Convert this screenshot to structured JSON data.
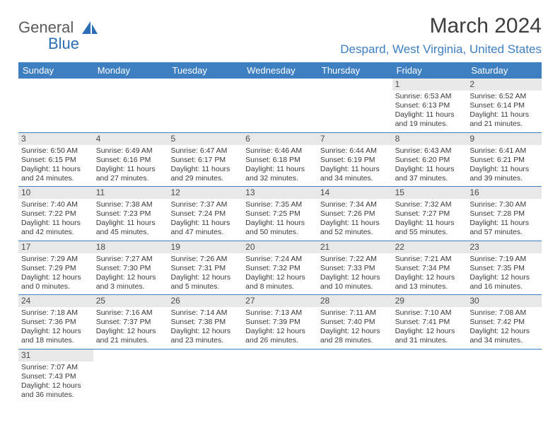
{
  "colors": {
    "header_bg": "#3d7fc1",
    "header_text": "#ffffff",
    "daynum_bg": "#e8e8e8",
    "row_border": "#3d7fc1",
    "title_color": "#3d3d3d",
    "location_color": "#3d7fc1",
    "logo_gray": "#5a5a5a",
    "logo_blue": "#2a6fb5"
  },
  "logo": {
    "gray": "General",
    "blue": "Blue"
  },
  "title": "March 2024",
  "location": "Despard, West Virginia, United States",
  "day_headers": [
    "Sunday",
    "Monday",
    "Tuesday",
    "Wednesday",
    "Thursday",
    "Friday",
    "Saturday"
  ],
  "weeks": [
    [
      null,
      null,
      null,
      null,
      null,
      {
        "n": "1",
        "sunrise": "Sunrise: 6:53 AM",
        "sunset": "Sunset: 6:13 PM",
        "daylight": "Daylight: 11 hours and 19 minutes."
      },
      {
        "n": "2",
        "sunrise": "Sunrise: 6:52 AM",
        "sunset": "Sunset: 6:14 PM",
        "daylight": "Daylight: 11 hours and 21 minutes."
      }
    ],
    [
      {
        "n": "3",
        "sunrise": "Sunrise: 6:50 AM",
        "sunset": "Sunset: 6:15 PM",
        "daylight": "Daylight: 11 hours and 24 minutes."
      },
      {
        "n": "4",
        "sunrise": "Sunrise: 6:49 AM",
        "sunset": "Sunset: 6:16 PM",
        "daylight": "Daylight: 11 hours and 27 minutes."
      },
      {
        "n": "5",
        "sunrise": "Sunrise: 6:47 AM",
        "sunset": "Sunset: 6:17 PM",
        "daylight": "Daylight: 11 hours and 29 minutes."
      },
      {
        "n": "6",
        "sunrise": "Sunrise: 6:46 AM",
        "sunset": "Sunset: 6:18 PM",
        "daylight": "Daylight: 11 hours and 32 minutes."
      },
      {
        "n": "7",
        "sunrise": "Sunrise: 6:44 AM",
        "sunset": "Sunset: 6:19 PM",
        "daylight": "Daylight: 11 hours and 34 minutes."
      },
      {
        "n": "8",
        "sunrise": "Sunrise: 6:43 AM",
        "sunset": "Sunset: 6:20 PM",
        "daylight": "Daylight: 11 hours and 37 minutes."
      },
      {
        "n": "9",
        "sunrise": "Sunrise: 6:41 AM",
        "sunset": "Sunset: 6:21 PM",
        "daylight": "Daylight: 11 hours and 39 minutes."
      }
    ],
    [
      {
        "n": "10",
        "sunrise": "Sunrise: 7:40 AM",
        "sunset": "Sunset: 7:22 PM",
        "daylight": "Daylight: 11 hours and 42 minutes."
      },
      {
        "n": "11",
        "sunrise": "Sunrise: 7:38 AM",
        "sunset": "Sunset: 7:23 PM",
        "daylight": "Daylight: 11 hours and 45 minutes."
      },
      {
        "n": "12",
        "sunrise": "Sunrise: 7:37 AM",
        "sunset": "Sunset: 7:24 PM",
        "daylight": "Daylight: 11 hours and 47 minutes."
      },
      {
        "n": "13",
        "sunrise": "Sunrise: 7:35 AM",
        "sunset": "Sunset: 7:25 PM",
        "daylight": "Daylight: 11 hours and 50 minutes."
      },
      {
        "n": "14",
        "sunrise": "Sunrise: 7:34 AM",
        "sunset": "Sunset: 7:26 PM",
        "daylight": "Daylight: 11 hours and 52 minutes."
      },
      {
        "n": "15",
        "sunrise": "Sunrise: 7:32 AM",
        "sunset": "Sunset: 7:27 PM",
        "daylight": "Daylight: 11 hours and 55 minutes."
      },
      {
        "n": "16",
        "sunrise": "Sunrise: 7:30 AM",
        "sunset": "Sunset: 7:28 PM",
        "daylight": "Daylight: 11 hours and 57 minutes."
      }
    ],
    [
      {
        "n": "17",
        "sunrise": "Sunrise: 7:29 AM",
        "sunset": "Sunset: 7:29 PM",
        "daylight": "Daylight: 12 hours and 0 minutes."
      },
      {
        "n": "18",
        "sunrise": "Sunrise: 7:27 AM",
        "sunset": "Sunset: 7:30 PM",
        "daylight": "Daylight: 12 hours and 3 minutes."
      },
      {
        "n": "19",
        "sunrise": "Sunrise: 7:26 AM",
        "sunset": "Sunset: 7:31 PM",
        "daylight": "Daylight: 12 hours and 5 minutes."
      },
      {
        "n": "20",
        "sunrise": "Sunrise: 7:24 AM",
        "sunset": "Sunset: 7:32 PM",
        "daylight": "Daylight: 12 hours and 8 minutes."
      },
      {
        "n": "21",
        "sunrise": "Sunrise: 7:22 AM",
        "sunset": "Sunset: 7:33 PM",
        "daylight": "Daylight: 12 hours and 10 minutes."
      },
      {
        "n": "22",
        "sunrise": "Sunrise: 7:21 AM",
        "sunset": "Sunset: 7:34 PM",
        "daylight": "Daylight: 12 hours and 13 minutes."
      },
      {
        "n": "23",
        "sunrise": "Sunrise: 7:19 AM",
        "sunset": "Sunset: 7:35 PM",
        "daylight": "Daylight: 12 hours and 16 minutes."
      }
    ],
    [
      {
        "n": "24",
        "sunrise": "Sunrise: 7:18 AM",
        "sunset": "Sunset: 7:36 PM",
        "daylight": "Daylight: 12 hours and 18 minutes."
      },
      {
        "n": "25",
        "sunrise": "Sunrise: 7:16 AM",
        "sunset": "Sunset: 7:37 PM",
        "daylight": "Daylight: 12 hours and 21 minutes."
      },
      {
        "n": "26",
        "sunrise": "Sunrise: 7:14 AM",
        "sunset": "Sunset: 7:38 PM",
        "daylight": "Daylight: 12 hours and 23 minutes."
      },
      {
        "n": "27",
        "sunrise": "Sunrise: 7:13 AM",
        "sunset": "Sunset: 7:39 PM",
        "daylight": "Daylight: 12 hours and 26 minutes."
      },
      {
        "n": "28",
        "sunrise": "Sunrise: 7:11 AM",
        "sunset": "Sunset: 7:40 PM",
        "daylight": "Daylight: 12 hours and 28 minutes."
      },
      {
        "n": "29",
        "sunrise": "Sunrise: 7:10 AM",
        "sunset": "Sunset: 7:41 PM",
        "daylight": "Daylight: 12 hours and 31 minutes."
      },
      {
        "n": "30",
        "sunrise": "Sunrise: 7:08 AM",
        "sunset": "Sunset: 7:42 PM",
        "daylight": "Daylight: 12 hours and 34 minutes."
      }
    ],
    [
      {
        "n": "31",
        "sunrise": "Sunrise: 7:07 AM",
        "sunset": "Sunset: 7:43 PM",
        "daylight": "Daylight: 12 hours and 36 minutes."
      },
      null,
      null,
      null,
      null,
      null,
      null
    ]
  ]
}
